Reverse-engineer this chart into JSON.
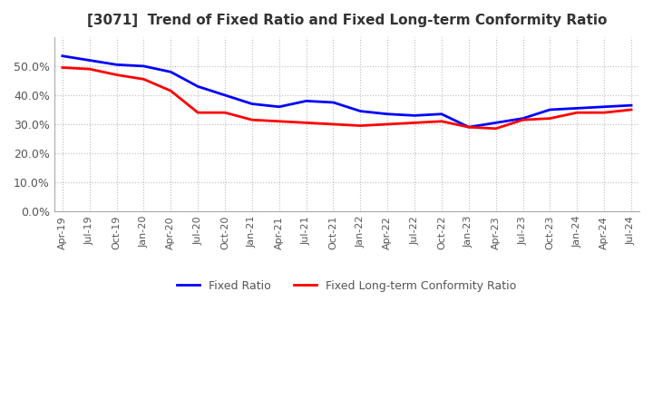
{
  "title": "[3071]  Trend of Fixed Ratio and Fixed Long-term Conformity Ratio",
  "fixed_ratio": {
    "dates": [
      "Apr-19",
      "Jul-19",
      "Oct-19",
      "Jan-20",
      "Apr-20",
      "Jul-20",
      "Oct-20",
      "Jan-21",
      "Apr-21",
      "Jul-21",
      "Oct-21",
      "Jan-22",
      "Apr-22",
      "Jul-22",
      "Oct-22",
      "Jan-23",
      "Apr-23",
      "Jul-23",
      "Oct-23",
      "Jan-24",
      "Apr-24",
      "Jul-24"
    ],
    "values": [
      0.535,
      0.52,
      0.505,
      0.5,
      0.48,
      0.43,
      0.4,
      0.37,
      0.36,
      0.38,
      0.375,
      0.345,
      0.335,
      0.33,
      0.335,
      0.29,
      0.305,
      0.32,
      0.35,
      0.355,
      0.36,
      0.365
    ],
    "color": "#0000FF"
  },
  "fixed_lt_ratio": {
    "dates": [
      "Apr-19",
      "Jul-19",
      "Oct-19",
      "Jan-20",
      "Apr-20",
      "Jul-20",
      "Oct-20",
      "Jan-21",
      "Apr-21",
      "Jul-21",
      "Oct-21",
      "Jan-22",
      "Apr-22",
      "Jul-22",
      "Oct-22",
      "Jan-23",
      "Apr-23",
      "Jul-23",
      "Oct-23",
      "Jan-24",
      "Apr-24",
      "Jul-24"
    ],
    "values": [
      0.495,
      0.49,
      0.47,
      0.455,
      0.415,
      0.34,
      0.34,
      0.315,
      0.31,
      0.305,
      0.3,
      0.295,
      0.3,
      0.305,
      0.31,
      0.29,
      0.285,
      0.315,
      0.32,
      0.34,
      0.34,
      0.35
    ],
    "color": "#FF0000"
  },
  "ylim": [
    0.0,
    0.6
  ],
  "yticks": [
    0.0,
    0.1,
    0.2,
    0.3,
    0.4,
    0.5
  ],
  "legend_labels": [
    "Fixed Ratio",
    "Fixed Long-term Conformity Ratio"
  ],
  "grid_color": "#BBBBBB",
  "background_color": "#FFFFFF",
  "title_fontsize": 11,
  "line_width": 2.0,
  "tick_label_color": "#555555",
  "tick_label_fontsize": 8
}
